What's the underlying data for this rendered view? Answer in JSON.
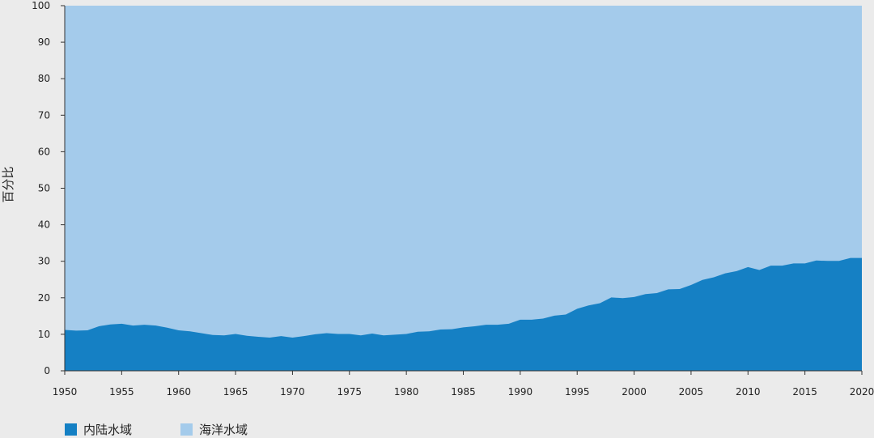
{
  "chart_data": {
    "type": "area",
    "stacked": true,
    "ylabel": "百分比",
    "xlabel": "",
    "ylim": [
      0,
      100
    ],
    "xlim": [
      1950,
      2020
    ],
    "yticks": [
      "0",
      "10",
      "20",
      "30",
      "40",
      "50",
      "60",
      "70",
      "80",
      "90",
      "100"
    ],
    "xticks": [
      "1950",
      "1955",
      "1960",
      "1965",
      "1970",
      "1975",
      "1980",
      "1985",
      "1990",
      "1995",
      "2000",
      "2005",
      "2010",
      "2015",
      "2020"
    ],
    "x": [
      1950,
      1951,
      1952,
      1953,
      1954,
      1955,
      1956,
      1957,
      1958,
      1959,
      1960,
      1961,
      1962,
      1963,
      1964,
      1965,
      1966,
      1967,
      1968,
      1969,
      1970,
      1971,
      1972,
      1973,
      1974,
      1975,
      1976,
      1977,
      1978,
      1979,
      1980,
      1981,
      1982,
      1983,
      1984,
      1985,
      1986,
      1987,
      1988,
      1989,
      1990,
      1991,
      1992,
      1993,
      1994,
      1995,
      1996,
      1997,
      1998,
      1999,
      2000,
      2001,
      2002,
      2003,
      2004,
      2005,
      2006,
      2007,
      2008,
      2009,
      2010,
      2011,
      2012,
      2013,
      2014,
      2015,
      2016,
      2017,
      2018,
      2019,
      2020
    ],
    "series": [
      {
        "name": "内陆水域",
        "color": "#1580c4",
        "values": [
          11.2,
          11.0,
          11.1,
          12.2,
          12.7,
          12.9,
          12.4,
          12.6,
          12.4,
          11.8,
          11.1,
          10.8,
          10.3,
          9.8,
          9.7,
          10.1,
          9.6,
          9.3,
          9.1,
          9.5,
          9.1,
          9.5,
          10.0,
          10.3,
          10.1,
          10.1,
          9.7,
          10.2,
          9.7,
          9.9,
          10.1,
          10.7,
          10.8,
          11.3,
          11.4,
          11.9,
          12.2,
          12.6,
          12.6,
          12.9,
          14.0,
          14.0,
          14.3,
          15.1,
          15.4,
          17.0,
          17.9,
          18.5,
          20.1,
          19.9,
          20.2,
          21.0,
          21.3,
          22.3,
          22.4,
          23.5,
          24.9,
          25.6,
          26.7,
          27.3,
          28.4,
          27.6,
          28.8,
          28.8,
          29.4,
          29.4,
          30.2,
          30.1,
          30.1,
          30.9,
          30.9
        ]
      },
      {
        "name": "海洋水域",
        "color": "#a4cbeb"
      }
    ]
  },
  "legend": {
    "items": [
      {
        "label": "内陆水域",
        "color": "#1580c4"
      },
      {
        "label": "海洋水域",
        "color": "#a4cbeb"
      }
    ]
  }
}
